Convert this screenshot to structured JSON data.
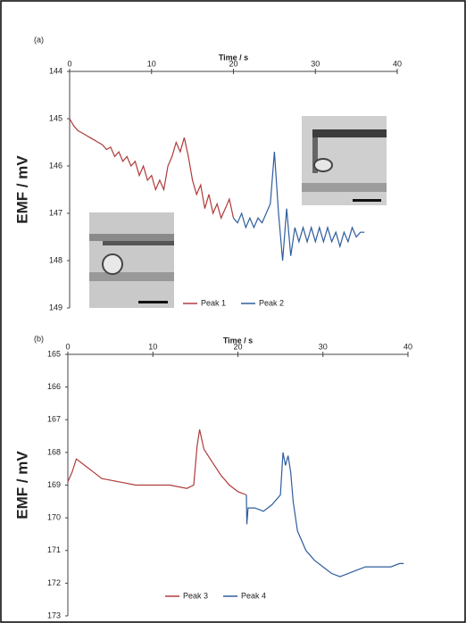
{
  "chart_data": [
    {
      "type": "line",
      "label": "(a)",
      "x_label": "Time / s",
      "y_label": "EMF / mV",
      "xlim": [
        0,
        40
      ],
      "xticks": [
        0,
        10,
        20,
        30,
        40
      ],
      "ylim": [
        144,
        149
      ],
      "yticks": [
        144,
        145,
        146,
        147,
        148,
        149
      ],
      "y_reversed": true,
      "series": [
        {
          "name": "Peak 1",
          "color": "#b03a3a",
          "x": [
            0,
            0.5,
            1,
            1.5,
            2,
            2.5,
            3,
            3.5,
            4,
            4.5,
            5,
            5.5,
            6,
            6.5,
            7,
            7.5,
            8,
            8.5,
            9,
            9.5,
            10,
            10.5,
            11,
            11.5,
            12,
            12.5,
            13,
            13.5,
            14,
            14.5,
            15,
            15.5,
            16,
            16.5,
            17,
            17.5,
            18,
            18.5,
            19,
            19.5,
            20
          ],
          "values": [
            145.0,
            145.15,
            145.25,
            145.3,
            145.35,
            145.4,
            145.45,
            145.5,
            145.55,
            145.65,
            145.6,
            145.8,
            145.7,
            145.9,
            145.8,
            146.0,
            145.9,
            146.2,
            146.0,
            146.3,
            146.2,
            146.5,
            146.3,
            146.5,
            146.0,
            145.8,
            145.5,
            145.7,
            145.4,
            145.8,
            146.3,
            146.6,
            146.4,
            146.9,
            146.6,
            147.0,
            146.8,
            147.1,
            146.9,
            146.7,
            147.1
          ]
        },
        {
          "name": "Peak 2",
          "color": "#2f5d9e",
          "x": [
            20,
            20.5,
            21,
            21.5,
            22,
            22.5,
            23,
            23.5,
            24,
            24.5,
            25,
            25.5,
            26,
            26.5,
            27,
            27.5,
            28,
            28.5,
            29,
            29.5,
            30,
            30.5,
            31,
            31.5,
            32,
            32.5,
            33,
            33.5,
            34,
            34.5,
            35,
            35.5,
            36
          ],
          "values": [
            147.1,
            147.2,
            147.0,
            147.3,
            147.1,
            147.3,
            147.1,
            147.2,
            147.0,
            146.8,
            145.7,
            147.0,
            148.0,
            146.9,
            147.9,
            147.3,
            147.6,
            147.3,
            147.6,
            147.3,
            147.6,
            147.3,
            147.6,
            147.3,
            147.6,
            147.4,
            147.7,
            147.4,
            147.6,
            147.3,
            147.5,
            147.4,
            147.4
          ]
        }
      ]
    },
    {
      "type": "line",
      "label": "(b)",
      "x_label": "Time / s",
      "y_label": "EMF / mV",
      "xlim": [
        0,
        40
      ],
      "xticks": [
        0,
        10,
        20,
        30,
        40
      ],
      "ylim": [
        165,
        173
      ],
      "yticks": [
        165,
        166,
        167,
        168,
        169,
        170,
        171,
        172,
        173
      ],
      "y_reversed": true,
      "series": [
        {
          "name": "Peak 3",
          "color": "#b03a3a",
          "x": [
            0,
            0.5,
            1,
            2,
            3,
            4,
            6,
            8,
            10,
            12,
            14,
            14.8,
            15.2,
            15.5,
            16,
            17,
            18,
            19,
            20,
            21
          ],
          "values": [
            168.9,
            168.6,
            168.2,
            168.4,
            168.6,
            168.8,
            168.9,
            169.0,
            169.0,
            169.0,
            169.1,
            169.0,
            167.8,
            167.3,
            167.9,
            168.3,
            168.7,
            169.0,
            169.2,
            169.3
          ]
        },
        {
          "name": "Peak 4",
          "color": "#2f5d9e",
          "x": [
            21,
            21.05,
            21.2,
            22,
            23,
            24,
            25,
            25.3,
            25.6,
            25.9,
            26.2,
            26.5,
            27,
            28,
            29,
            30,
            31,
            32,
            33,
            34,
            35,
            36,
            37,
            38,
            39,
            39.5
          ],
          "values": [
            169.3,
            170.2,
            169.7,
            169.7,
            169.8,
            169.6,
            169.3,
            168.0,
            168.4,
            168.1,
            168.6,
            169.5,
            170.4,
            171.0,
            171.3,
            171.5,
            171.7,
            171.8,
            171.7,
            171.6,
            171.5,
            171.5,
            171.5,
            171.5,
            171.4,
            171.4
          ]
        }
      ]
    }
  ]
}
